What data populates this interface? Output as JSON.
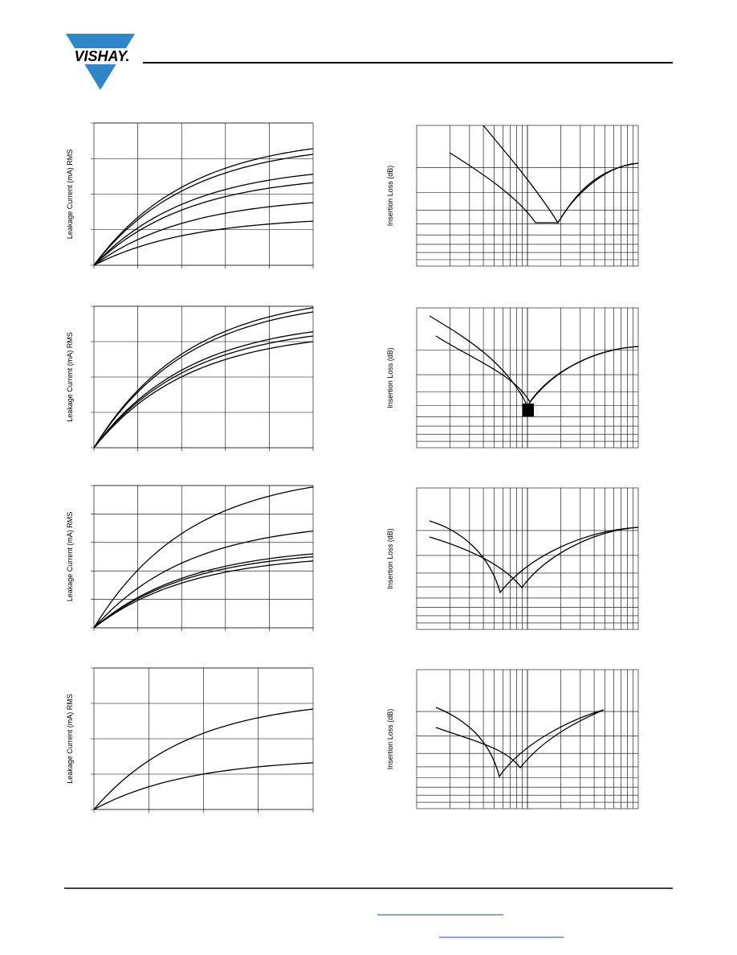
{
  "header": {
    "logo": "VISHAY."
  },
  "left_charts": [
    {
      "ylabel": "Leakage Current (mA) RMS"
    },
    {
      "ylabel": "Leakage Current (mA) RMS"
    },
    {
      "ylabel": "Leakage Current (mA) RMS"
    },
    {
      "ylabel": "Leakage Current (mA) RMS"
    }
  ],
  "right_charts": [
    {
      "ylabel": "Insertion Loss (dB)"
    },
    {
      "ylabel": "Insertion Loss (dB)"
    },
    {
      "ylabel": "Insertion Loss (dB)"
    },
    {
      "ylabel": "Insertion Loss (dB)"
    }
  ]
}
